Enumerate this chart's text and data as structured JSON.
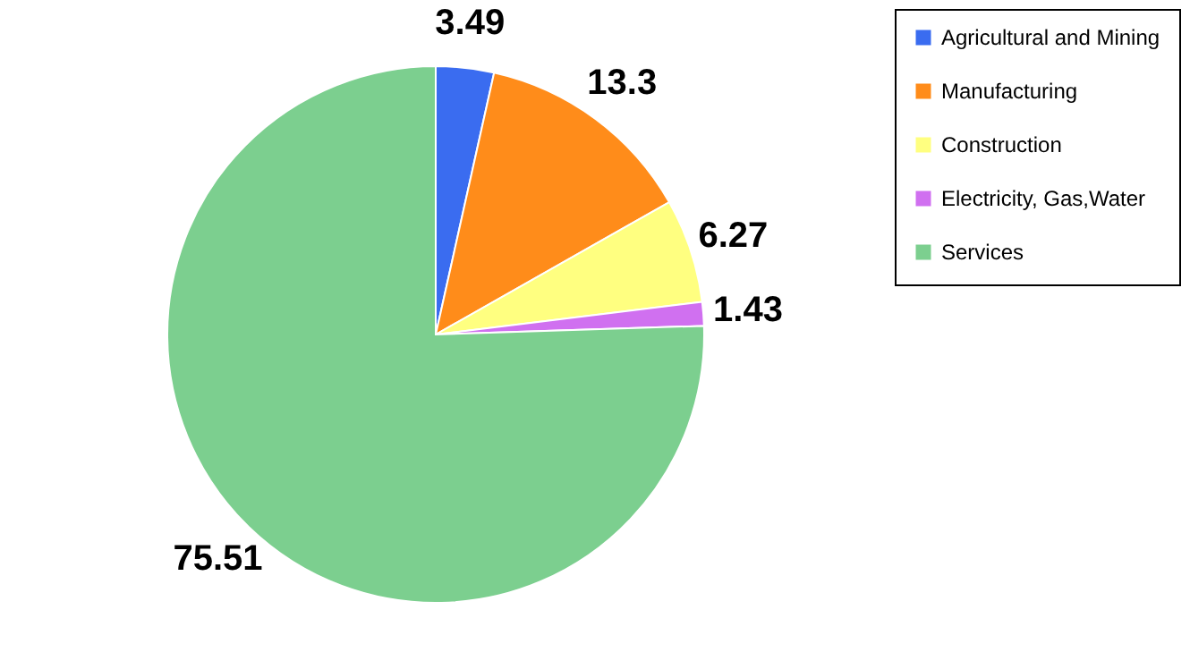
{
  "chart_data": {
    "type": "pie",
    "categories": [
      "Agricultural and Mining",
      "Manufacturing",
      "Construction",
      "Electricity, Gas,Water",
      "Services"
    ],
    "values": [
      3.49,
      13.3,
      6.27,
      1.43,
      75.51
    ],
    "colors": [
      "#3a6cf0",
      "#ff8c1a",
      "#ffff80",
      "#d070f0",
      "#7ccf8f"
    ],
    "data_labels": true,
    "legend": "right"
  }
}
